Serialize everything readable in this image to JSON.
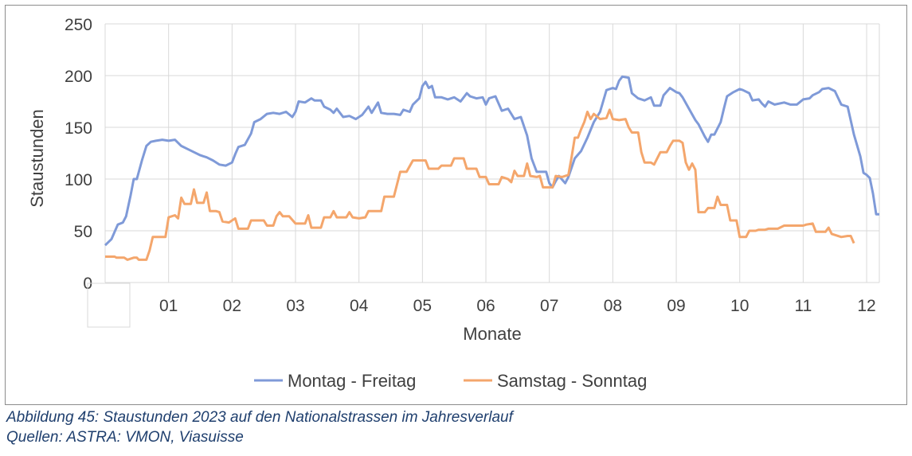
{
  "colors": {
    "series1": "#7f9ad8",
    "series2": "#f4a66c",
    "grid": "#d9d9d9",
    "text": "#404040",
    "caption": "#1f3f6e"
  },
  "caption": {
    "line1": "Abbildung 45: Staustunden 2023 auf den Nationalstrassen im Jahresverlauf",
    "line2": "Quellen: ASTRA: VMON, Viasuisse"
  },
  "chart_data": {
    "type": "line",
    "title": "",
    "xlabel": "Monate",
    "ylabel": "Staustunden",
    "ylim": [
      0,
      250
    ],
    "yticks": [
      0,
      50,
      100,
      150,
      200,
      250
    ],
    "xlim": [
      0,
      12.2
    ],
    "xticks": [
      {
        "x": 1,
        "label": "01"
      },
      {
        "x": 2,
        "label": "02"
      },
      {
        "x": 3,
        "label": "03"
      },
      {
        "x": 4,
        "label": "04"
      },
      {
        "x": 5,
        "label": "05"
      },
      {
        "x": 6,
        "label": "06"
      },
      {
        "x": 7,
        "label": "07"
      },
      {
        "x": 8,
        "label": "08"
      },
      {
        "x": 9,
        "label": "09"
      },
      {
        "x": 10,
        "label": "10"
      },
      {
        "x": 11,
        "label": "11"
      },
      {
        "x": 12,
        "label": "12"
      }
    ],
    "grid": true,
    "legend_position": "bottom",
    "series": [
      {
        "name": "Montag - Freitag",
        "color": "#7f9ad8",
        "points": [
          [
            0,
            36
          ],
          [
            0.1,
            42
          ],
          [
            0.2,
            56
          ],
          [
            0.28,
            58
          ],
          [
            0.33,
            64
          ],
          [
            0.4,
            84
          ],
          [
            0.45,
            100
          ],
          [
            0.5,
            100
          ],
          [
            0.58,
            118
          ],
          [
            0.65,
            132
          ],
          [
            0.72,
            136
          ],
          [
            0.8,
            137
          ],
          [
            0.9,
            138
          ],
          [
            1.0,
            137
          ],
          [
            1.1,
            138
          ],
          [
            1.2,
            132
          ],
          [
            1.3,
            129
          ],
          [
            1.4,
            126
          ],
          [
            1.5,
            123
          ],
          [
            1.6,
            121
          ],
          [
            1.7,
            118
          ],
          [
            1.8,
            114
          ],
          [
            1.9,
            113
          ],
          [
            2.0,
            116
          ],
          [
            2.05,
            124
          ],
          [
            2.1,
            131
          ],
          [
            2.2,
            133
          ],
          [
            2.3,
            144
          ],
          [
            2.35,
            155
          ],
          [
            2.45,
            158
          ],
          [
            2.55,
            163
          ],
          [
            2.65,
            164
          ],
          [
            2.75,
            163
          ],
          [
            2.85,
            165
          ],
          [
            2.95,
            160
          ],
          [
            3.0,
            165
          ],
          [
            3.05,
            175
          ],
          [
            3.15,
            174
          ],
          [
            3.25,
            178
          ],
          [
            3.3,
            176
          ],
          [
            3.4,
            176
          ],
          [
            3.45,
            170
          ],
          [
            3.55,
            167
          ],
          [
            3.6,
            164
          ],
          [
            3.65,
            168
          ],
          [
            3.75,
            160
          ],
          [
            3.85,
            161
          ],
          [
            3.95,
            158
          ],
          [
            4.05,
            162
          ],
          [
            4.15,
            170
          ],
          [
            4.2,
            164
          ],
          [
            4.3,
            174
          ],
          [
            4.35,
            164
          ],
          [
            4.45,
            163
          ],
          [
            4.55,
            163
          ],
          [
            4.65,
            162
          ],
          [
            4.7,
            167
          ],
          [
            4.8,
            165
          ],
          [
            4.85,
            172
          ],
          [
            4.95,
            178
          ],
          [
            5.0,
            190
          ],
          [
            5.05,
            194
          ],
          [
            5.1,
            188
          ],
          [
            5.15,
            190
          ],
          [
            5.2,
            179
          ],
          [
            5.3,
            179
          ],
          [
            5.4,
            177
          ],
          [
            5.5,
            179
          ],
          [
            5.6,
            175
          ],
          [
            5.7,
            183
          ],
          [
            5.75,
            180
          ],
          [
            5.85,
            178
          ],
          [
            5.95,
            179
          ],
          [
            6.0,
            172
          ],
          [
            6.05,
            178
          ],
          [
            6.15,
            180
          ],
          [
            6.25,
            166
          ],
          [
            6.35,
            168
          ],
          [
            6.45,
            158
          ],
          [
            6.55,
            160
          ],
          [
            6.65,
            142
          ],
          [
            6.72,
            120
          ],
          [
            6.8,
            107
          ],
          [
            6.9,
            107
          ],
          [
            6.95,
            107
          ],
          [
            7.0,
            96
          ],
          [
            7.05,
            92
          ],
          [
            7.1,
            98
          ],
          [
            7.15,
            103
          ],
          [
            7.25,
            96
          ],
          [
            7.3,
            102
          ],
          [
            7.4,
            120
          ],
          [
            7.5,
            127
          ],
          [
            7.6,
            140
          ],
          [
            7.7,
            155
          ],
          [
            7.8,
            165
          ],
          [
            7.9,
            186
          ],
          [
            8.0,
            188
          ],
          [
            8.05,
            187
          ],
          [
            8.1,
            195
          ],
          [
            8.15,
            199
          ],
          [
            8.25,
            198
          ],
          [
            8.3,
            183
          ],
          [
            8.4,
            178
          ],
          [
            8.5,
            176
          ],
          [
            8.6,
            179
          ],
          [
            8.65,
            171
          ],
          [
            8.75,
            171
          ],
          [
            8.8,
            181
          ],
          [
            8.9,
            188
          ],
          [
            9.0,
            184
          ],
          [
            9.05,
            183
          ],
          [
            9.1,
            179
          ],
          [
            9.2,
            168
          ],
          [
            9.3,
            157
          ],
          [
            9.35,
            153
          ],
          [
            9.45,
            141
          ],
          [
            9.5,
            136
          ],
          [
            9.55,
            143
          ],
          [
            9.6,
            143
          ],
          [
            9.7,
            155
          ],
          [
            9.75,
            168
          ],
          [
            9.8,
            180
          ],
          [
            9.9,
            184
          ],
          [
            10.0,
            187
          ],
          [
            10.05,
            186
          ],
          [
            10.15,
            183
          ],
          [
            10.2,
            176
          ],
          [
            10.3,
            177
          ],
          [
            10.35,
            173
          ],
          [
            10.4,
            170
          ],
          [
            10.45,
            175
          ],
          [
            10.55,
            172
          ],
          [
            10.7,
            174
          ],
          [
            10.8,
            172
          ],
          [
            10.9,
            172
          ],
          [
            11.0,
            177
          ],
          [
            11.1,
            178
          ],
          [
            11.15,
            181
          ],
          [
            11.25,
            184
          ],
          [
            11.3,
            187
          ],
          [
            11.4,
            188
          ],
          [
            11.5,
            185
          ],
          [
            11.6,
            172
          ],
          [
            11.7,
            170
          ],
          [
            11.8,
            143
          ],
          [
            11.9,
            122
          ],
          [
            11.95,
            106
          ],
          [
            12.0,
            104
          ],
          [
            12.05,
            101
          ],
          [
            12.1,
            86
          ],
          [
            12.15,
            66
          ],
          [
            12.2,
            66
          ]
        ]
      },
      {
        "name": "Samstag - Sonntag",
        "color": "#f4a66c",
        "points": [
          [
            0,
            25
          ],
          [
            0.15,
            25
          ],
          [
            0.18,
            24
          ],
          [
            0.3,
            24
          ],
          [
            0.35,
            22
          ],
          [
            0.45,
            24
          ],
          [
            0.5,
            24
          ],
          [
            0.53,
            22
          ],
          [
            0.65,
            22
          ],
          [
            0.7,
            31
          ],
          [
            0.75,
            44
          ],
          [
            0.85,
            44
          ],
          [
            0.95,
            44
          ],
          [
            1.0,
            63
          ],
          [
            1.1,
            65
          ],
          [
            1.15,
            62
          ],
          [
            1.2,
            82
          ],
          [
            1.25,
            76
          ],
          [
            1.35,
            76
          ],
          [
            1.4,
            90
          ],
          [
            1.45,
            77
          ],
          [
            1.55,
            77
          ],
          [
            1.6,
            87
          ],
          [
            1.65,
            69
          ],
          [
            1.75,
            69
          ],
          [
            1.8,
            68
          ],
          [
            1.85,
            59
          ],
          [
            1.95,
            58
          ],
          [
            2.05,
            62
          ],
          [
            2.1,
            52
          ],
          [
            2.25,
            52
          ],
          [
            2.3,
            60
          ],
          [
            2.4,
            60
          ],
          [
            2.5,
            60
          ],
          [
            2.55,
            55
          ],
          [
            2.65,
            55
          ],
          [
            2.7,
            64
          ],
          [
            2.75,
            68
          ],
          [
            2.8,
            64
          ],
          [
            2.9,
            64
          ],
          [
            3.0,
            57
          ],
          [
            3.15,
            57
          ],
          [
            3.2,
            65
          ],
          [
            3.25,
            53
          ],
          [
            3.4,
            53
          ],
          [
            3.45,
            63
          ],
          [
            3.55,
            63
          ],
          [
            3.6,
            69
          ],
          [
            3.65,
            63
          ],
          [
            3.8,
            63
          ],
          [
            3.85,
            68
          ],
          [
            3.9,
            63
          ],
          [
            4.0,
            62
          ],
          [
            4.1,
            63
          ],
          [
            4.15,
            69
          ],
          [
            4.2,
            69
          ],
          [
            4.35,
            69
          ],
          [
            4.4,
            83
          ],
          [
            4.55,
            83
          ],
          [
            4.65,
            107
          ],
          [
            4.75,
            107
          ],
          [
            4.85,
            118
          ],
          [
            5.05,
            118
          ],
          [
            5.1,
            110
          ],
          [
            5.25,
            110
          ],
          [
            5.3,
            113
          ],
          [
            5.45,
            113
          ],
          [
            5.5,
            120
          ],
          [
            5.65,
            120
          ],
          [
            5.7,
            110
          ],
          [
            5.85,
            110
          ],
          [
            5.9,
            102
          ],
          [
            6.0,
            102
          ],
          [
            6.05,
            95
          ],
          [
            6.2,
            95
          ],
          [
            6.25,
            102
          ],
          [
            6.35,
            100
          ],
          [
            6.4,
            97
          ],
          [
            6.45,
            108
          ],
          [
            6.5,
            103
          ],
          [
            6.6,
            103
          ],
          [
            6.65,
            115
          ],
          [
            6.7,
            103
          ],
          [
            6.8,
            102
          ],
          [
            6.85,
            103
          ],
          [
            6.9,
            92
          ],
          [
            7.05,
            92
          ],
          [
            7.1,
            103
          ],
          [
            7.2,
            102
          ],
          [
            7.3,
            104
          ],
          [
            7.35,
            121
          ],
          [
            7.4,
            140
          ],
          [
            7.45,
            140
          ],
          [
            7.5,
            148
          ],
          [
            7.55,
            155
          ],
          [
            7.6,
            165
          ],
          [
            7.65,
            158
          ],
          [
            7.7,
            163
          ],
          [
            7.8,
            158
          ],
          [
            7.9,
            159
          ],
          [
            7.95,
            167
          ],
          [
            8.0,
            158
          ],
          [
            8.1,
            157
          ],
          [
            8.2,
            158
          ],
          [
            8.25,
            150
          ],
          [
            8.3,
            145
          ],
          [
            8.4,
            145
          ],
          [
            8.45,
            126
          ],
          [
            8.5,
            116
          ],
          [
            8.6,
            116
          ],
          [
            8.65,
            114
          ],
          [
            8.75,
            126
          ],
          [
            8.85,
            126
          ],
          [
            8.9,
            132
          ],
          [
            8.95,
            137
          ],
          [
            9.05,
            137
          ],
          [
            9.1,
            135
          ],
          [
            9.15,
            116
          ],
          [
            9.2,
            109
          ],
          [
            9.25,
            115
          ],
          [
            9.3,
            109
          ],
          [
            9.35,
            68
          ],
          [
            9.45,
            68
          ],
          [
            9.5,
            72
          ],
          [
            9.6,
            72
          ],
          [
            9.65,
            83
          ],
          [
            9.7,
            75
          ],
          [
            9.8,
            75
          ],
          [
            9.85,
            60
          ],
          [
            9.95,
            60
          ],
          [
            10.0,
            44
          ],
          [
            10.1,
            44
          ],
          [
            10.15,
            50
          ],
          [
            10.25,
            50
          ],
          [
            10.3,
            51
          ],
          [
            10.4,
            51
          ],
          [
            10.45,
            52
          ],
          [
            10.6,
            52
          ],
          [
            10.7,
            55
          ],
          [
            10.8,
            55
          ],
          [
            10.85,
            55
          ],
          [
            11.0,
            55
          ],
          [
            11.05,
            56
          ],
          [
            11.15,
            57
          ],
          [
            11.2,
            49
          ],
          [
            11.35,
            49
          ],
          [
            11.4,
            53
          ],
          [
            11.45,
            47
          ],
          [
            11.6,
            44
          ],
          [
            11.7,
            45
          ],
          [
            11.75,
            45
          ],
          [
            11.8,
            38
          ]
        ]
      }
    ]
  }
}
